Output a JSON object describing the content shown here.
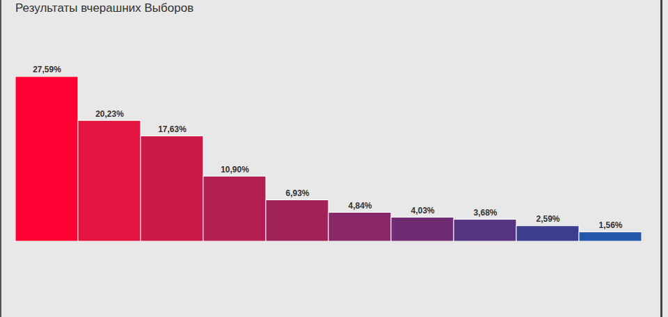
{
  "chart_data": {
    "type": "bar",
    "title": "Результаты вчерашних Выборов",
    "categories": [
      null,
      null,
      null,
      null,
      null,
      null,
      null,
      null,
      null,
      null
    ],
    "values": [
      27.59,
      20.23,
      17.63,
      10.9,
      6.93,
      4.84,
      4.03,
      3.68,
      2.59,
      1.56
    ],
    "value_labels": [
      "27,59%",
      "20,23%",
      "17,63%",
      "10,90%",
      "6,93%",
      "4,84%",
      "4,03%",
      "3,68%",
      "2,59%",
      "1,56%"
    ],
    "colors": [
      "#ff0033",
      "#e3143f",
      "#cb1a47",
      "#b31e50",
      "#a02259",
      "#8a2766",
      "#6f2c73",
      "#573480",
      "#3c3e8d",
      "#2456a8"
    ],
    "data_labels": true,
    "tick_labels": false
  }
}
